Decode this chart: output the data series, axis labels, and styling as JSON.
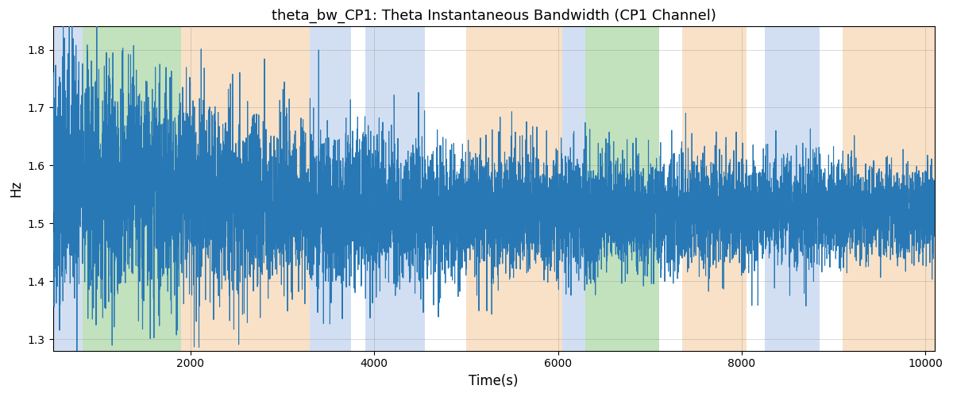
{
  "title": "theta_bw_CP1: Theta Instantaneous Bandwidth (CP1 Channel)",
  "xlabel": "Time(s)",
  "ylabel": "Hz",
  "xlim": [
    500,
    10100
  ],
  "ylim": [
    1.28,
    1.84
  ],
  "line_color": "#2878b5",
  "line_width": 0.8,
  "background_color": "#ffffff",
  "seed": 42,
  "n_points": 9600,
  "x_start": 500,
  "x_end": 10100,
  "bands": [
    {
      "xmin": 500,
      "xmax": 820,
      "color": "#aec6e8",
      "alpha": 0.55
    },
    {
      "xmin": 820,
      "xmax": 1900,
      "color": "#90c987",
      "alpha": 0.55
    },
    {
      "xmin": 1900,
      "xmax": 3300,
      "color": "#f5c99a",
      "alpha": 0.55
    },
    {
      "xmin": 3300,
      "xmax": 3750,
      "color": "#aec6e8",
      "alpha": 0.55
    },
    {
      "xmin": 3750,
      "xmax": 3900,
      "color": "#ffffff",
      "alpha": 0.0
    },
    {
      "xmin": 3900,
      "xmax": 4550,
      "color": "#aec6e8",
      "alpha": 0.55
    },
    {
      "xmin": 4550,
      "xmax": 5000,
      "color": "#ffffff",
      "alpha": 0.0
    },
    {
      "xmin": 5000,
      "xmax": 6050,
      "color": "#f5c99a",
      "alpha": 0.55
    },
    {
      "xmin": 6050,
      "xmax": 6300,
      "color": "#aec6e8",
      "alpha": 0.55
    },
    {
      "xmin": 6300,
      "xmax": 7100,
      "color": "#90c987",
      "alpha": 0.55
    },
    {
      "xmin": 7100,
      "xmax": 7350,
      "color": "#ffffff",
      "alpha": 0.0
    },
    {
      "xmin": 7350,
      "xmax": 8050,
      "color": "#f5c99a",
      "alpha": 0.55
    },
    {
      "xmin": 8050,
      "xmax": 8250,
      "color": "#ffffff",
      "alpha": 0.0
    },
    {
      "xmin": 8250,
      "xmax": 8850,
      "color": "#aec6e8",
      "alpha": 0.55
    },
    {
      "xmin": 8850,
      "xmax": 9100,
      "color": "#ffffff",
      "alpha": 0.0
    },
    {
      "xmin": 9100,
      "xmax": 10100,
      "color": "#f5c99a",
      "alpha": 0.55
    }
  ],
  "xticks": [
    2000,
    4000,
    6000,
    8000,
    10000
  ],
  "yticks": [
    1.3,
    1.4,
    1.5,
    1.6,
    1.7,
    1.8
  ]
}
